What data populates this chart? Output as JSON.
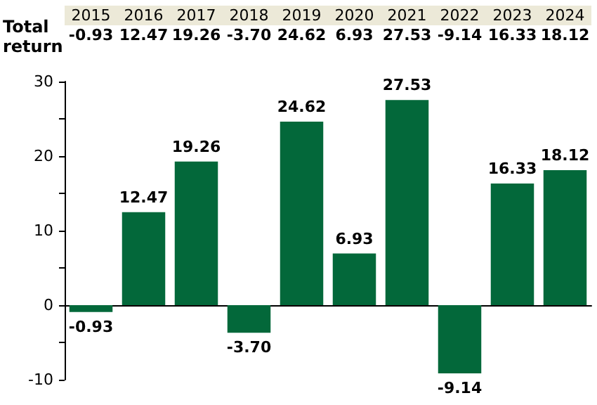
{
  "chart_data": {
    "type": "bar",
    "categories": [
      "2015",
      "2016",
      "2017",
      "2018",
      "2019",
      "2020",
      "2021",
      "2022",
      "2023",
      "2024"
    ],
    "values": [
      -0.93,
      12.47,
      19.26,
      -3.7,
      24.62,
      6.93,
      27.53,
      -9.14,
      16.33,
      18.12
    ],
    "value_labels": [
      "-0.93",
      "12.47",
      "19.26",
      "-3.70",
      "24.62",
      "6.93",
      "27.53",
      "-9.14",
      "16.33",
      "18.12"
    ],
    "color": "#03683a",
    "annotations": [
      "Total return"
    ],
    "ylim": [
      -10,
      30
    ],
    "yticks": [
      -10,
      {
        "value": -5,
        "label": null
      },
      0,
      {
        "value": 5,
        "label": null
      },
      10,
      {
        "value": 15,
        "label": null
      },
      20,
      {
        "value": 25,
        "label": null
      },
      30
    ]
  }
}
